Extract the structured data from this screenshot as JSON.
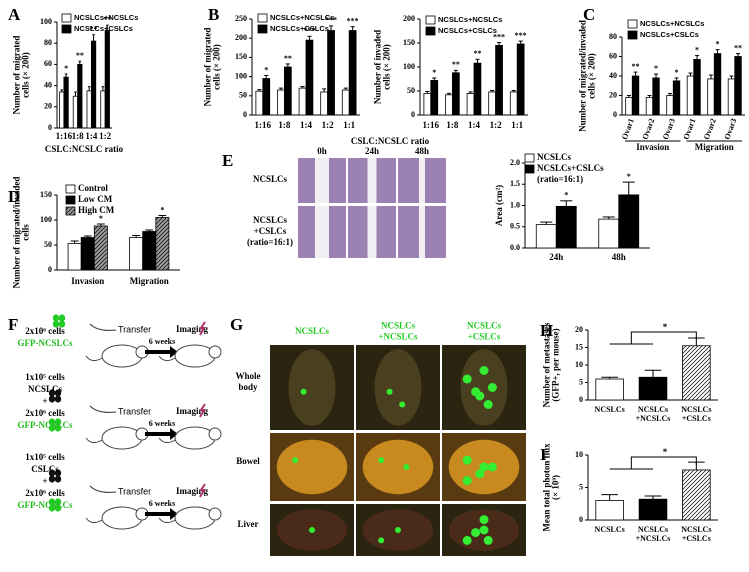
{
  "panel_letters": [
    "A",
    "B",
    "C",
    "D",
    "E",
    "F",
    "G",
    "H",
    "I"
  ],
  "chart_data": [
    {
      "type": "bar",
      "ylabel": [
        "Number of migrated",
        "cells (× 200)"
      ],
      "xlabel": "CSLC:NCSLC ratio",
      "categories": [
        "1:16",
        "1:8",
        "1:4",
        "1:2"
      ],
      "ylim": [
        0,
        100
      ],
      "yticks": [
        0,
        20,
        40,
        60,
        80,
        100
      ],
      "series": [
        {
          "name": "NCSLCs+NCSLCs",
          "color": "#ffffff",
          "values": [
            34,
            30,
            35,
            35
          ],
          "errors": [
            2,
            4,
            4,
            4
          ]
        },
        {
          "name": "NCSLCs+CSLCs",
          "color": "#000000",
          "values": [
            48,
            60,
            82,
            92
          ],
          "errors": [
            3,
            3,
            6,
            5
          ],
          "stars": [
            "*",
            "**",
            "**",
            "**"
          ]
        }
      ]
    },
    {
      "type": "bar",
      "ylabel": [
        "Number of migrated",
        "cells (× 200)"
      ],
      "xlabel": "CSLC:NCSLC ratio",
      "categories": [
        "1:16",
        "1:8",
        "1:4",
        "1:2",
        "1:1"
      ],
      "ylim": [
        0,
        250
      ],
      "yticks": [
        0,
        50,
        100,
        150,
        200,
        250
      ],
      "series": [
        {
          "name": "NCSLCs+NCSLCs",
          "color": "#ffffff",
          "values": [
            62,
            65,
            70,
            60,
            65
          ],
          "errors": [
            4,
            5,
            4,
            8,
            5
          ]
        },
        {
          "name": "NCSLCs+CSLCs",
          "color": "#000000",
          "values": [
            95,
            125,
            195,
            220,
            220
          ],
          "errors": [
            8,
            8,
            10,
            12,
            10
          ],
          "stars": [
            "*",
            "**",
            "***",
            "***",
            "***"
          ]
        }
      ]
    },
    {
      "type": "bar",
      "ylabel": [
        "Number of invaded",
        "cells (× 200)"
      ],
      "categories": [
        "1:16",
        "1:8",
        "1:4",
        "1:2",
        "1:1"
      ],
      "ylim": [
        0,
        200
      ],
      "yticks": [
        0,
        50,
        100,
        150,
        200
      ],
      "series": [
        {
          "name": "NCSLCs+NCSLCs",
          "color": "#ffffff",
          "values": [
            45,
            42,
            45,
            48,
            48
          ],
          "errors": [
            4,
            3,
            3,
            3,
            3
          ]
        },
        {
          "name": "NCSLCs+CSLCs",
          "color": "#000000",
          "values": [
            72,
            88,
            108,
            145,
            148
          ],
          "errors": [
            5,
            5,
            8,
            6,
            6
          ],
          "stars": [
            "*",
            "**",
            "**",
            "***",
            "***"
          ]
        }
      ]
    },
    {
      "type": "bar",
      "ylabel": [
        "Number of migrated/invaded",
        "cells (× 200)"
      ],
      "categories": [
        "Ovar1",
        "Ovar2",
        "Ovar3",
        "Ovar1",
        "Ovar2",
        "Ovar3"
      ],
      "groups": [
        "Invasion",
        "Migration"
      ],
      "ylim": [
        0,
        80
      ],
      "yticks": [
        0,
        20,
        40,
        60,
        80
      ],
      "series": [
        {
          "name": "NCSLCs+NCSLCs",
          "color": "#ffffff",
          "values": [
            18,
            18,
            20,
            40,
            37,
            37
          ],
          "errors": [
            2,
            2,
            2,
            3,
            4,
            3
          ]
        },
        {
          "name": "NCSLCs+CSLCs",
          "color": "#000000",
          "values": [
            40,
            38,
            35,
            57,
            63,
            60
          ],
          "errors": [
            4,
            4,
            3,
            4,
            4,
            3
          ],
          "stars": [
            "**",
            "*",
            "*",
            "*",
            "*",
            "**"
          ]
        }
      ]
    },
    {
      "type": "bar",
      "ylabel": [
        "Number of migrated/invaded",
        "cells"
      ],
      "categories": [
        "Invasion",
        "Migration"
      ],
      "ylim": [
        0,
        150
      ],
      "yticks": [
        0,
        50,
        100,
        150
      ],
      "series": [
        {
          "name": "Control",
          "color": "#ffffff",
          "values": [
            53,
            65
          ],
          "errors": [
            5,
            4
          ]
        },
        {
          "name": "Low CM",
          "color": "#000000",
          "values": [
            65,
            77
          ],
          "errors": [
            3,
            3
          ]
        },
        {
          "name": "High CM",
          "color": "#9a9a9a",
          "hatched": true,
          "values": [
            88,
            105
          ],
          "errors": [
            4,
            4
          ],
          "stars": [
            "*",
            "*"
          ]
        }
      ]
    },
    {
      "type": "bar",
      "ylabel": "Area (cm²)",
      "categories": [
        "24h",
        "48h"
      ],
      "ylim": [
        0,
        2
      ],
      "yticks": [
        {
          "value": 0,
          "label": "0.0"
        },
        0.5,
        {
          "value": 1,
          "label": "1.0"
        },
        1.5,
        {
          "value": 2,
          "label": "2.0"
        }
      ],
      "legend_note": "(ratio=16:1)",
      "series": [
        {
          "name": "NCSLCs",
          "color": "#ffffff",
          "values": [
            0.55,
            0.68
          ],
          "errors": [
            0.06,
            0.05
          ]
        },
        {
          "name": "NCSLCs+CSLCs",
          "color": "#000000",
          "values": [
            0.98,
            1.25
          ],
          "errors": [
            0.13,
            0.3
          ],
          "stars": [
            "*",
            "*"
          ]
        }
      ]
    },
    {
      "type": "bar",
      "ylabel": [
        "Number of metastases",
        "(GFP+, per mouse)"
      ],
      "categories": [
        [
          "NCSLCs"
        ],
        [
          "NCSLCs",
          "+NCSLCs"
        ],
        [
          "NCSLCs",
          "+CSLCs"
        ]
      ],
      "ylim": [
        0,
        20
      ],
      "yticks": [
        0,
        5,
        10,
        15,
        20
      ],
      "values": [
        6,
        6.5,
        15.5
      ],
      "errors": [
        0.5,
        2,
        2.2
      ],
      "colors": [
        "#ffffff",
        "#000000",
        "#ffffff"
      ],
      "hatched": [
        false,
        false,
        true
      ],
      "significance": "*"
    },
    {
      "type": "bar",
      "ylabel": [
        "Mean total photon flux",
        "(× 10⁹)"
      ],
      "categories": [
        [
          "NCSLCs"
        ],
        [
          "NCSLCs",
          "+NCSLCs"
        ],
        [
          "NCSLCs",
          "+CSLCs"
        ]
      ],
      "ylim": [
        0,
        10
      ],
      "yticks": [
        0,
        5,
        10
      ],
      "values": [
        3,
        3.2,
        7.7
      ],
      "errors": [
        0.9,
        0.5,
        1.2
      ],
      "colors": [
        "#ffffff",
        "#000000",
        "#ffffff"
      ],
      "hatched": [
        false,
        false,
        true
      ],
      "significance": "*"
    }
  ],
  "wound_images": {
    "columns": [
      "0h",
      "24h",
      "48h"
    ],
    "rows": [
      [
        "NCSLCs"
      ],
      [
        "NCSLCs",
        "+CSLCs",
        "(ratio=16:1)"
      ]
    ]
  },
  "schematic": {
    "groups": [
      {
        "donor": [
          "2x10⁶ cells",
          "GFP-NCSLCs"
        ],
        "transfer": "Transfer",
        "duration": "6 weeks",
        "imaging": "Imaging"
      },
      {
        "donor": [
          "1x10⁵ cells",
          "NCSLCs",
          "+",
          "2x10⁶ cells",
          "GFP-NCSLCs"
        ],
        "transfer": "Transfer",
        "duration": "6 weeks",
        "imaging": "Imaging"
      },
      {
        "donor": [
          "1x10⁵ cells",
          "CSLCs",
          "+",
          "2x10⁶ cells",
          "GFP-NCSLCs"
        ],
        "transfer": "Transfer",
        "duration": "6 weeks",
        "imaging": "Imaging"
      }
    ]
  },
  "imaging": {
    "columns": [
      [
        "NCSLCs"
      ],
      [
        "NCSLCs",
        "+NCSLCs"
      ],
      [
        "NCSLCs",
        "+CSLCs"
      ]
    ],
    "rows": [
      [
        "Whole",
        "body"
      ],
      [
        "Bowel"
      ],
      [
        "Liver"
      ]
    ]
  }
}
